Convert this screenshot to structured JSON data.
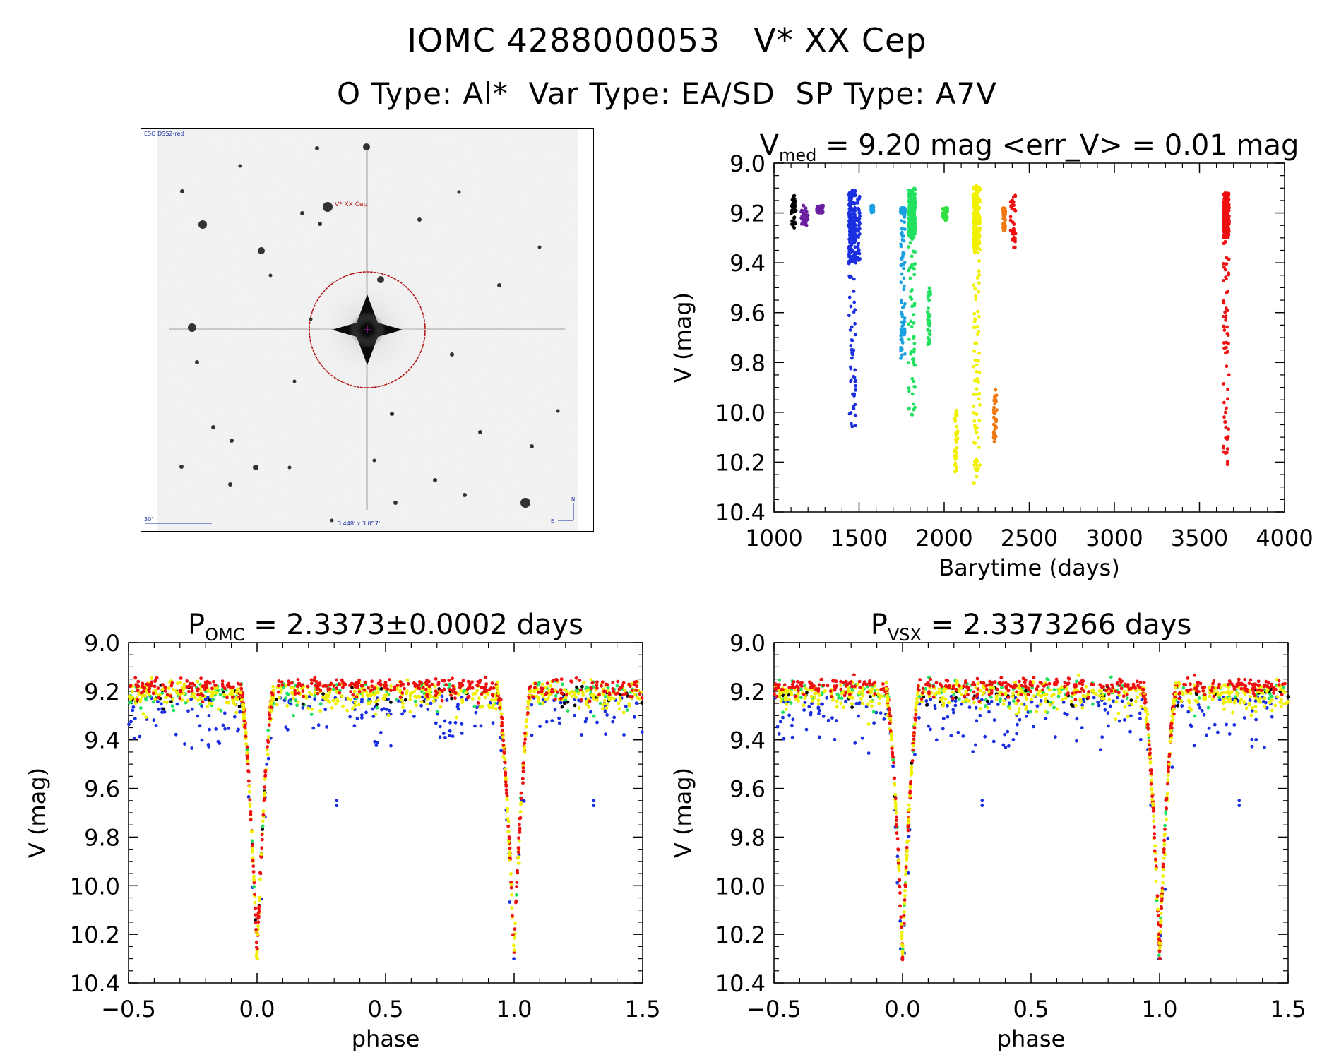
{
  "header": {
    "line1": "IOMC 4288000053   V* XX Cep",
    "line2": "O Type: Al*  Var Type: EA/SD  SP Type: A7V"
  },
  "image": {
    "survey": "ESO DSS2-red",
    "target": "V* XX Cep",
    "scale": "30\"",
    "size": "3.448' x 3.057'",
    "north": "N",
    "east": "E"
  },
  "colors": {
    "black": "#000000",
    "purple": "#6a1fa0",
    "blue": "#1a2fe0",
    "cyan": "#1aa0e0",
    "green": "#22e060",
    "lime": "#30e040",
    "yellow": "#f0f000",
    "orange": "#f07810",
    "red": "#ee1010",
    "circle": "#b01010"
  },
  "chart_data": [
    {
      "type": "scatter",
      "name": "lightcurve",
      "title_main": "V",
      "title_sub": "med",
      "title_rest": " = 9.20 mag <err_V> = 0.01 mag",
      "xlabel": "Barytime (days)",
      "ylabel": "V (mag)",
      "xlim": [
        1000,
        4000
      ],
      "ylim": [
        10.4,
        9.0
      ],
      "xticks": [
        1000,
        1500,
        2000,
        2500,
        3000,
        3500,
        4000
      ],
      "yticks": [
        9.0,
        9.2,
        9.4,
        9.6,
        9.8,
        10.0,
        10.2,
        10.4
      ],
      "groups": [
        {
          "color": "black",
          "x": [
            1100,
            1130
          ],
          "ymin": 9.13,
          "ymax": 9.26
        },
        {
          "color": "purple",
          "x": [
            1160,
            1200
          ],
          "ymin": 9.17,
          "ymax": 9.25
        },
        {
          "color": "purple",
          "x": [
            1250,
            1290
          ],
          "ymin": 9.17,
          "ymax": 9.2
        },
        {
          "color": "blue",
          "x": [
            1440,
            1480
          ],
          "ymin": 9.11,
          "ymax": 10.09,
          "dense_max": 9.4
        },
        {
          "color": "blue",
          "x": [
            1490,
            1505
          ],
          "ymin": 9.12,
          "ymax": 9.4
        },
        {
          "color": "cyan",
          "x": [
            1570,
            1585
          ],
          "ymin": 9.17,
          "ymax": 9.2
        },
        {
          "color": "cyan",
          "x": [
            1745,
            1770
          ],
          "ymin": 9.18,
          "ymax": 9.79,
          "dense_max": 9.2
        },
        {
          "color": "green",
          "x": [
            1790,
            1830
          ],
          "ymin": 9.1,
          "ymax": 10.03,
          "dense_max": 9.3
        },
        {
          "color": "green",
          "x": [
            1900,
            1920
          ],
          "ymin": 9.49,
          "ymax": 9.73
        },
        {
          "color": "lime",
          "x": [
            1990,
            2020
          ],
          "ymin": 9.18,
          "ymax": 9.23
        },
        {
          "color": "yellow",
          "x": [
            2060,
            2080
          ],
          "ymin": 9.99,
          "ymax": 10.24
        },
        {
          "color": "yellow",
          "x": [
            2170,
            2210
          ],
          "ymin": 9.09,
          "ymax": 10.29,
          "dense_max": 9.35
        },
        {
          "color": "orange",
          "x": [
            2290,
            2310
          ],
          "ymin": 9.91,
          "ymax": 10.13
        },
        {
          "color": "orange",
          "x": [
            2345,
            2360
          ],
          "ymin": 9.18,
          "ymax": 9.27
        },
        {
          "color": "red",
          "x": [
            2390,
            2420
          ],
          "ymin": 9.12,
          "ymax": 9.35
        },
        {
          "color": "red",
          "x": [
            3640,
            3675
          ],
          "ymin": 9.12,
          "ymax": 10.21,
          "dense_max": 9.3
        }
      ]
    },
    {
      "type": "scatter",
      "name": "phase-omc",
      "title_main": "P",
      "title_sub": "OMC",
      "title_rest": " = 2.3373±0.0002 days",
      "xlabel": "phase",
      "ylabel": "V (mag)",
      "xlim": [
        -0.5,
        1.5
      ],
      "ylim": [
        10.4,
        9.0
      ],
      "xticks": [
        -0.5,
        0.0,
        0.5,
        1.0,
        1.5
      ],
      "yticks": [
        9.0,
        9.2,
        9.4,
        9.6,
        9.8,
        10.0,
        10.2,
        10.4
      ],
      "period_days": 2.3373,
      "baseline_mag": 9.2,
      "primary_min_phase": 0.0,
      "primary_min_mag": 10.28,
      "eclipse_halfwidth_phase": 0.065,
      "outlier_points": [
        [
          0.31,
          9.65
        ],
        [
          1.31,
          9.65
        ]
      ]
    },
    {
      "type": "scatter",
      "name": "phase-vsx",
      "title_main": "P",
      "title_sub": "VSX",
      "title_rest": " = 2.3373266 days",
      "xlabel": "phase",
      "ylabel": "V (mag)",
      "xlim": [
        -0.5,
        1.5
      ],
      "ylim": [
        10.4,
        9.0
      ],
      "xticks": [
        -0.5,
        0.0,
        0.5,
        1.0,
        1.5
      ],
      "yticks": [
        9.0,
        9.2,
        9.4,
        9.6,
        9.8,
        10.0,
        10.2,
        10.4
      ],
      "period_days": 2.3373266,
      "baseline_mag": 9.2,
      "primary_min_phase": 0.0,
      "primary_min_mag": 10.28,
      "eclipse_halfwidth_phase": 0.065,
      "outlier_points": [
        [
          0.31,
          9.65
        ],
        [
          1.31,
          9.65
        ]
      ]
    }
  ]
}
